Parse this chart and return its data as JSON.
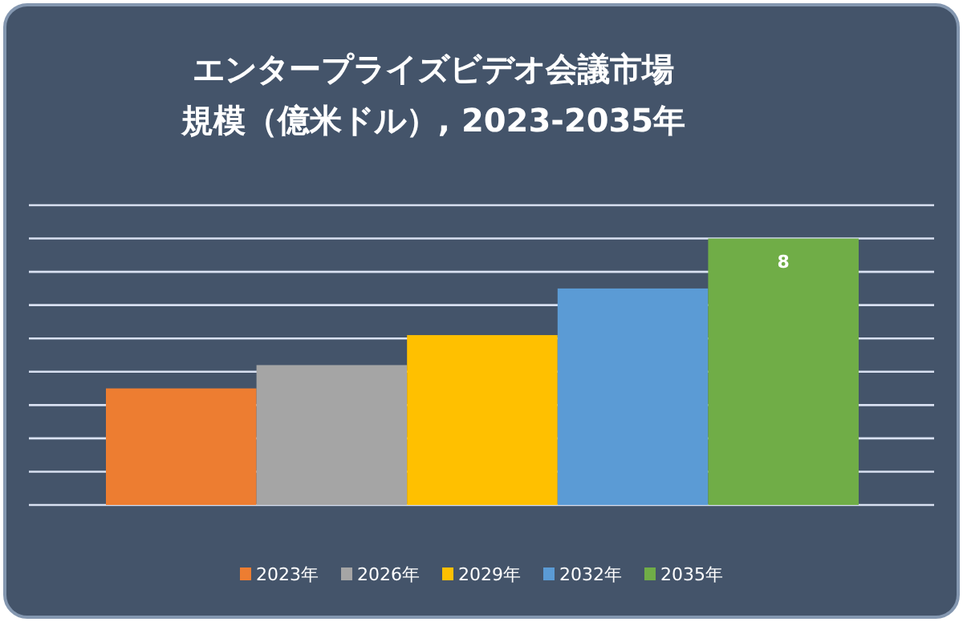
{
  "chart_data": {
    "type": "bar",
    "title": "エンタープライズビデオ会議市場規模（億米ドル）, 2023-2035年",
    "categories": [
      null,
      null,
      null,
      null,
      null
    ],
    "stacked": true,
    "series": [
      {
        "name": "2023年",
        "color": "#ed7d31",
        "values": [
          3.5,
          0,
          0,
          0,
          0
        ]
      },
      {
        "name": "2026年",
        "color": "#a5a5a5",
        "values": [
          0,
          4.2,
          0,
          0,
          0
        ]
      },
      {
        "name": "2029年",
        "color": "#ffc000",
        "values": [
          0,
          0,
          5.1,
          0,
          0
        ]
      },
      {
        "name": "2032年",
        "color": "#5b9bd5",
        "values": [
          0,
          0,
          0,
          6.5,
          0
        ]
      },
      {
        "name": "2035年",
        "color": "#70ad47",
        "values": [
          0,
          0,
          0,
          0,
          8
        ],
        "value_labels": [
          null,
          null,
          null,
          null,
          "8"
        ]
      }
    ],
    "ylim": [
      0,
      9
    ],
    "yticks": [
      {
        "value": 0,
        "label": null
      },
      {
        "value": 1,
        "label": null
      },
      {
        "value": 2,
        "label": null
      },
      {
        "value": 3,
        "label": null
      },
      {
        "value": 4,
        "label": null
      },
      {
        "value": 5,
        "label": null
      },
      {
        "value": 6,
        "label": null
      },
      {
        "value": 7,
        "label": null
      },
      {
        "value": 8,
        "label": null
      },
      {
        "value": 9,
        "label": null
      }
    ],
    "tick_labels": false,
    "grid": "y",
    "legend": "bottom"
  }
}
